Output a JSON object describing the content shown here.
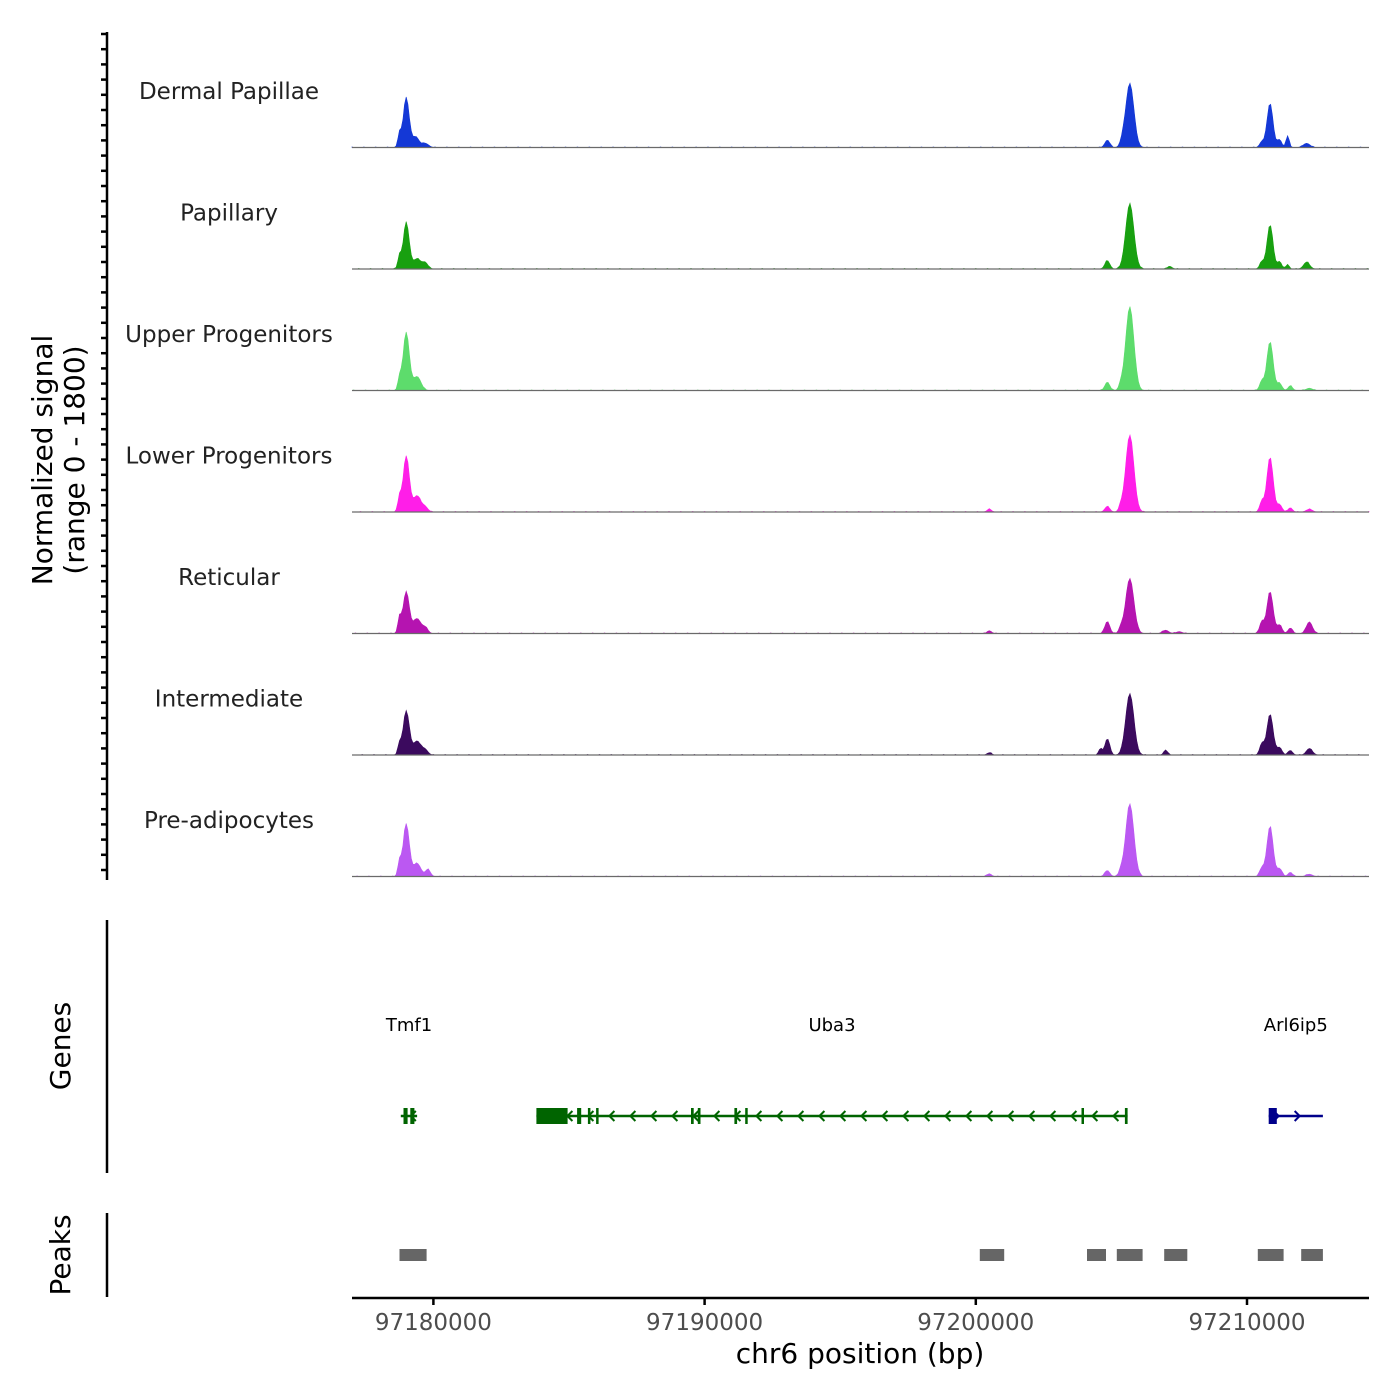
{
  "chart_data": {
    "type": "area",
    "title": "",
    "chromosome": "chr6",
    "xlabel": "chr6 position (bp)",
    "xlim": [
      97177000,
      97214500
    ],
    "x_ticks": [
      97180000,
      97190000,
      97200000,
      97210000
    ],
    "x_tick_labels": [
      "97180000",
      "97190000",
      "97200000",
      "97210000"
    ],
    "signal_panel": {
      "ylabel_line1": "Normalized signal",
      "ylabel_line2": "(range 0 - 1800)",
      "ylim": [
        0,
        1800
      ]
    },
    "series": [
      {
        "name": "Dermal Papillae",
        "color": "#1438d6",
        "peaks": [
          {
            "pos": 97179000,
            "height": 1080,
            "width": 110
          },
          {
            "pos": 97178750,
            "height": 280,
            "width": 60
          },
          {
            "pos": 97179350,
            "height": 230,
            "width": 120
          },
          {
            "pos": 97179700,
            "height": 90,
            "width": 120
          },
          {
            "pos": 97204850,
            "height": 160,
            "width": 90
          },
          {
            "pos": 97205680,
            "height": 1380,
            "width": 150
          },
          {
            "pos": 97205400,
            "height": 90,
            "width": 80
          },
          {
            "pos": 97210850,
            "height": 950,
            "width": 110
          },
          {
            "pos": 97210550,
            "height": 120,
            "width": 80
          },
          {
            "pos": 97211200,
            "height": 170,
            "width": 80
          },
          {
            "pos": 97211500,
            "height": 250,
            "width": 60
          },
          {
            "pos": 97212200,
            "height": 90,
            "width": 120
          }
        ]
      },
      {
        "name": "Papillary",
        "color": "#18a010",
        "peaks": [
          {
            "pos": 97179000,
            "height": 1000,
            "width": 110
          },
          {
            "pos": 97178750,
            "height": 270,
            "width": 60
          },
          {
            "pos": 97179400,
            "height": 220,
            "width": 140
          },
          {
            "pos": 97179700,
            "height": 130,
            "width": 100
          },
          {
            "pos": 97204850,
            "height": 180,
            "width": 90
          },
          {
            "pos": 97205680,
            "height": 1400,
            "width": 150
          },
          {
            "pos": 97210850,
            "height": 950,
            "width": 110
          },
          {
            "pos": 97210550,
            "height": 150,
            "width": 80
          },
          {
            "pos": 97211200,
            "height": 160,
            "width": 80
          },
          {
            "pos": 97211500,
            "height": 100,
            "width": 60
          },
          {
            "pos": 97212200,
            "height": 150,
            "width": 110
          },
          {
            "pos": 97207150,
            "height": 60,
            "width": 80
          }
        ]
      },
      {
        "name": "Upper Progenitors",
        "color": "#5ddc6c",
        "peaks": [
          {
            "pos": 97179000,
            "height": 1250,
            "width": 115
          },
          {
            "pos": 97178750,
            "height": 250,
            "width": 60
          },
          {
            "pos": 97179400,
            "height": 300,
            "width": 140
          },
          {
            "pos": 97204850,
            "height": 180,
            "width": 90
          },
          {
            "pos": 97205680,
            "height": 1800,
            "width": 150
          },
          {
            "pos": 97205350,
            "height": 110,
            "width": 70
          },
          {
            "pos": 97210850,
            "height": 1050,
            "width": 115
          },
          {
            "pos": 97210550,
            "height": 200,
            "width": 80
          },
          {
            "pos": 97211200,
            "height": 150,
            "width": 90
          },
          {
            "pos": 97211600,
            "height": 100,
            "width": 80
          },
          {
            "pos": 97212300,
            "height": 50,
            "width": 110
          }
        ]
      },
      {
        "name": "Lower Progenitors",
        "color": "#ff1ee8",
        "peaks": [
          {
            "pos": 97179000,
            "height": 1200,
            "width": 115
          },
          {
            "pos": 97178750,
            "height": 300,
            "width": 60
          },
          {
            "pos": 97179400,
            "height": 350,
            "width": 140
          },
          {
            "pos": 97179700,
            "height": 100,
            "width": 100
          },
          {
            "pos": 97200500,
            "height": 60,
            "width": 80
          },
          {
            "pos": 97204850,
            "height": 120,
            "width": 90
          },
          {
            "pos": 97205680,
            "height": 1650,
            "width": 150
          },
          {
            "pos": 97205350,
            "height": 100,
            "width": 70
          },
          {
            "pos": 97210850,
            "height": 1180,
            "width": 115
          },
          {
            "pos": 97210550,
            "height": 220,
            "width": 80
          },
          {
            "pos": 97211200,
            "height": 160,
            "width": 90
          },
          {
            "pos": 97211600,
            "height": 90,
            "width": 80
          },
          {
            "pos": 97212300,
            "height": 60,
            "width": 110
          }
        ]
      },
      {
        "name": "Reticular",
        "color": "#b514b0",
        "peaks": [
          {
            "pos": 97179000,
            "height": 900,
            "width": 115
          },
          {
            "pos": 97178750,
            "height": 330,
            "width": 60
          },
          {
            "pos": 97179400,
            "height": 320,
            "width": 140
          },
          {
            "pos": 97179700,
            "height": 120,
            "width": 100
          },
          {
            "pos": 97200500,
            "height": 60,
            "width": 80
          },
          {
            "pos": 97204850,
            "height": 260,
            "width": 90
          },
          {
            "pos": 97205680,
            "height": 1180,
            "width": 150
          },
          {
            "pos": 97205350,
            "height": 110,
            "width": 70
          },
          {
            "pos": 97207000,
            "height": 70,
            "width": 110
          },
          {
            "pos": 97207500,
            "height": 40,
            "width": 110
          },
          {
            "pos": 97210850,
            "height": 900,
            "width": 115
          },
          {
            "pos": 97210550,
            "height": 250,
            "width": 80
          },
          {
            "pos": 97211200,
            "height": 180,
            "width": 90
          },
          {
            "pos": 97211600,
            "height": 120,
            "width": 80
          },
          {
            "pos": 97212300,
            "height": 250,
            "width": 110
          }
        ]
      },
      {
        "name": "Intermediate",
        "color": "#3b0a5e",
        "peaks": [
          {
            "pos": 97179000,
            "height": 950,
            "width": 115
          },
          {
            "pos": 97178750,
            "height": 220,
            "width": 60
          },
          {
            "pos": 97179400,
            "height": 300,
            "width": 140
          },
          {
            "pos": 97179700,
            "height": 110,
            "width": 100
          },
          {
            "pos": 97200500,
            "height": 50,
            "width": 80
          },
          {
            "pos": 97204850,
            "height": 350,
            "width": 90
          },
          {
            "pos": 97204600,
            "height": 140,
            "width": 60
          },
          {
            "pos": 97205680,
            "height": 1320,
            "width": 150
          },
          {
            "pos": 97207000,
            "height": 110,
            "width": 70
          },
          {
            "pos": 97210850,
            "height": 880,
            "width": 115
          },
          {
            "pos": 97210550,
            "height": 240,
            "width": 80
          },
          {
            "pos": 97211200,
            "height": 160,
            "width": 90
          },
          {
            "pos": 97211600,
            "height": 100,
            "width": 80
          },
          {
            "pos": 97212300,
            "height": 140,
            "width": 110
          }
        ]
      },
      {
        "name": "Pre-adipocytes",
        "color": "#bb58f2",
        "peaks": [
          {
            "pos": 97179000,
            "height": 1130,
            "width": 115
          },
          {
            "pos": 97178750,
            "height": 300,
            "width": 60
          },
          {
            "pos": 97179400,
            "height": 280,
            "width": 140
          },
          {
            "pos": 97179800,
            "height": 150,
            "width": 90
          },
          {
            "pos": 97200500,
            "height": 60,
            "width": 80
          },
          {
            "pos": 97204850,
            "height": 130,
            "width": 90
          },
          {
            "pos": 97205680,
            "height": 1560,
            "width": 150
          },
          {
            "pos": 97205350,
            "height": 110,
            "width": 70
          },
          {
            "pos": 97210850,
            "height": 1080,
            "width": 115
          },
          {
            "pos": 97210550,
            "height": 180,
            "width": 80
          },
          {
            "pos": 97211200,
            "height": 170,
            "width": 90
          },
          {
            "pos": 97211600,
            "height": 90,
            "width": 80
          },
          {
            "pos": 97212300,
            "height": 50,
            "width": 110
          }
        ]
      }
    ],
    "genes_panel": {
      "ylabel": "Genes",
      "genes": [
        {
          "name": "Tmf1",
          "start": 97178800,
          "end": 97179400,
          "strand": "-",
          "color": "#006400",
          "exons": [
            [
              97178900,
              97179050
            ],
            [
              97179150,
              97179300
            ]
          ]
        },
        {
          "name": "Uba3",
          "start": 97183800,
          "end": 97205600,
          "strand": "-",
          "color": "#006400",
          "exons": [
            [
              97183800,
              97184950
            ],
            [
              97185300,
              97185450
            ],
            [
              97185700,
              97185780
            ],
            [
              97186000,
              97186080
            ],
            [
              97189500,
              97189600
            ],
            [
              97189750,
              97189850
            ],
            [
              97191100,
              97191200
            ],
            [
              97191500,
              97191550
            ],
            [
              97203900,
              97203980
            ],
            [
              97205500,
              97205600
            ]
          ]
        },
        {
          "name": "Arl6ip5",
          "start": 97210800,
          "end": 97212800,
          "strand": "+",
          "color": "#00008b",
          "exons": [
            [
              97210800,
              97211100
            ]
          ]
        }
      ]
    },
    "peaks_panel": {
      "ylabel": "Peaks",
      "regions": [
        [
          97178750,
          97179750
        ],
        [
          97200150,
          97201050
        ],
        [
          97204100,
          97204800
        ],
        [
          97205200,
          97206150
        ],
        [
          97206950,
          97207800
        ],
        [
          97210400,
          97211350
        ],
        [
          97212000,
          97212800
        ]
      ]
    }
  }
}
